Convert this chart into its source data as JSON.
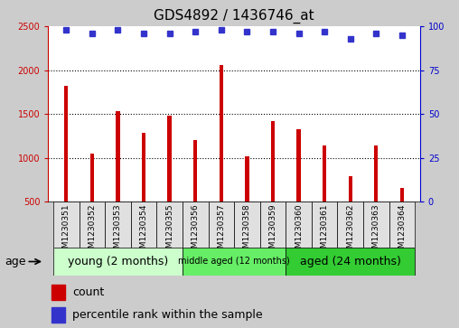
{
  "title": "GDS4892 / 1436746_at",
  "samples": [
    "GSM1230351",
    "GSM1230352",
    "GSM1230353",
    "GSM1230354",
    "GSM1230355",
    "GSM1230356",
    "GSM1230357",
    "GSM1230358",
    "GSM1230359",
    "GSM1230360",
    "GSM1230361",
    "GSM1230362",
    "GSM1230363",
    "GSM1230364"
  ],
  "counts": [
    1820,
    1050,
    1530,
    1285,
    1480,
    1200,
    2060,
    1020,
    1420,
    1330,
    1140,
    790,
    1140,
    660
  ],
  "percentiles": [
    98,
    96,
    98,
    96,
    96,
    97,
    98,
    97,
    97,
    96,
    97,
    93,
    96,
    95
  ],
  "bar_color": "#cc0000",
  "dot_color": "#3333cc",
  "ylim_left": [
    500,
    2500
  ],
  "ylim_right": [
    0,
    100
  ],
  "yticks_left": [
    500,
    1000,
    1500,
    2000,
    2500
  ],
  "yticks_right": [
    0,
    25,
    50,
    75,
    100
  ],
  "groups": [
    {
      "label": "young (2 months)",
      "start": 0,
      "end": 5,
      "color": "#ccffcc",
      "fontsize": 9
    },
    {
      "label": "middle aged (12 months)",
      "start": 5,
      "end": 9,
      "color": "#66ee66",
      "fontsize": 7
    },
    {
      "label": "aged (24 months)",
      "start": 9,
      "end": 14,
      "color": "#33cc33",
      "fontsize": 9
    }
  ],
  "xlabel_age": "age",
  "legend_count_label": "count",
  "legend_pct_label": "percentile rank within the sample",
  "bg_color": "#cccccc",
  "plot_bg": "#ffffff",
  "label_bg": "#cccccc",
  "title_fontsize": 11,
  "tick_fontsize": 7,
  "axis_color_left": "#cc0000",
  "axis_color_right": "#0000cc",
  "bar_width": 0.15
}
